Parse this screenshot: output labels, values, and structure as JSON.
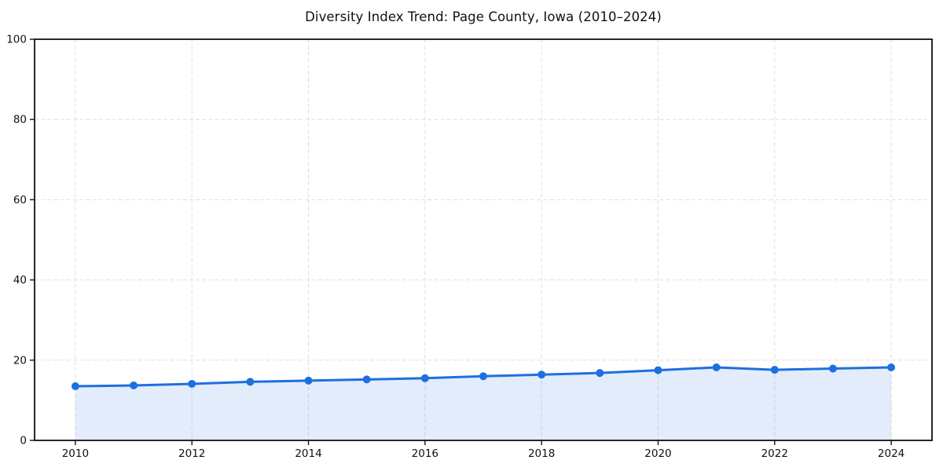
{
  "chart_data": {
    "type": "line",
    "title": "Diversity Index Trend: Page County, Iowa (2010–2024)",
    "x": [
      2010,
      2011,
      2012,
      2013,
      2014,
      2015,
      2016,
      2017,
      2018,
      2019,
      2020,
      2021,
      2022,
      2023,
      2024
    ],
    "series": [
      {
        "name": "Diversity Index",
        "values": [
          13.5,
          13.7,
          14.1,
          14.6,
          14.9,
          15.2,
          15.5,
          16.0,
          16.4,
          16.8,
          17.5,
          18.2,
          17.6,
          17.9,
          18.2
        ]
      }
    ],
    "xlabel": "",
    "ylabel": "",
    "ylim": [
      0,
      100
    ],
    "yticks": [
      0,
      20,
      40,
      60,
      80,
      100
    ],
    "xticks": [
      2010,
      2012,
      2014,
      2016,
      2018,
      2020,
      2022,
      2024
    ],
    "grid": true,
    "grid_style": "dashed",
    "legend": "none",
    "area_fill": true,
    "marker": "circle",
    "colors": {
      "line": "#1e6fe0",
      "marker": "#1e6fe0",
      "fill": "rgba(31, 111, 224, 0.13)",
      "grid": "#dedede",
      "spine": "#111111",
      "tick_text": "#111111"
    }
  }
}
